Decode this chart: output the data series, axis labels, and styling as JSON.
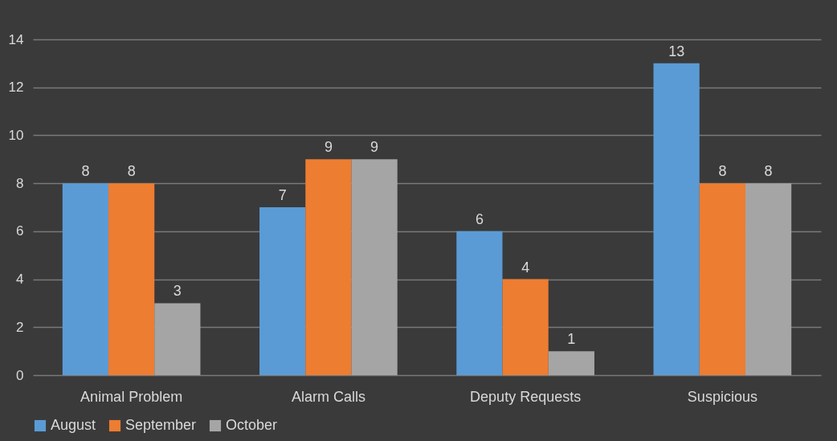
{
  "chart_data": {
    "type": "bar",
    "categories": [
      "Animal Problem",
      "Alarm Calls",
      "Deputy Requests",
      "Suspicious"
    ],
    "series": [
      {
        "name": "August",
        "color": "#5b9bd5",
        "values": [
          8,
          7,
          6,
          13
        ]
      },
      {
        "name": "September",
        "color": "#ed7d31",
        "values": [
          8,
          9,
          4,
          8
        ]
      },
      {
        "name": "October",
        "color": "#a5a5a5",
        "values": [
          3,
          9,
          1,
          8
        ]
      }
    ],
    "ylim": [
      0,
      14
    ],
    "yticks": [
      0,
      2,
      4,
      6,
      8,
      10,
      12,
      14
    ],
    "grid": "y",
    "legend": "bottom",
    "data_labels": true
  }
}
